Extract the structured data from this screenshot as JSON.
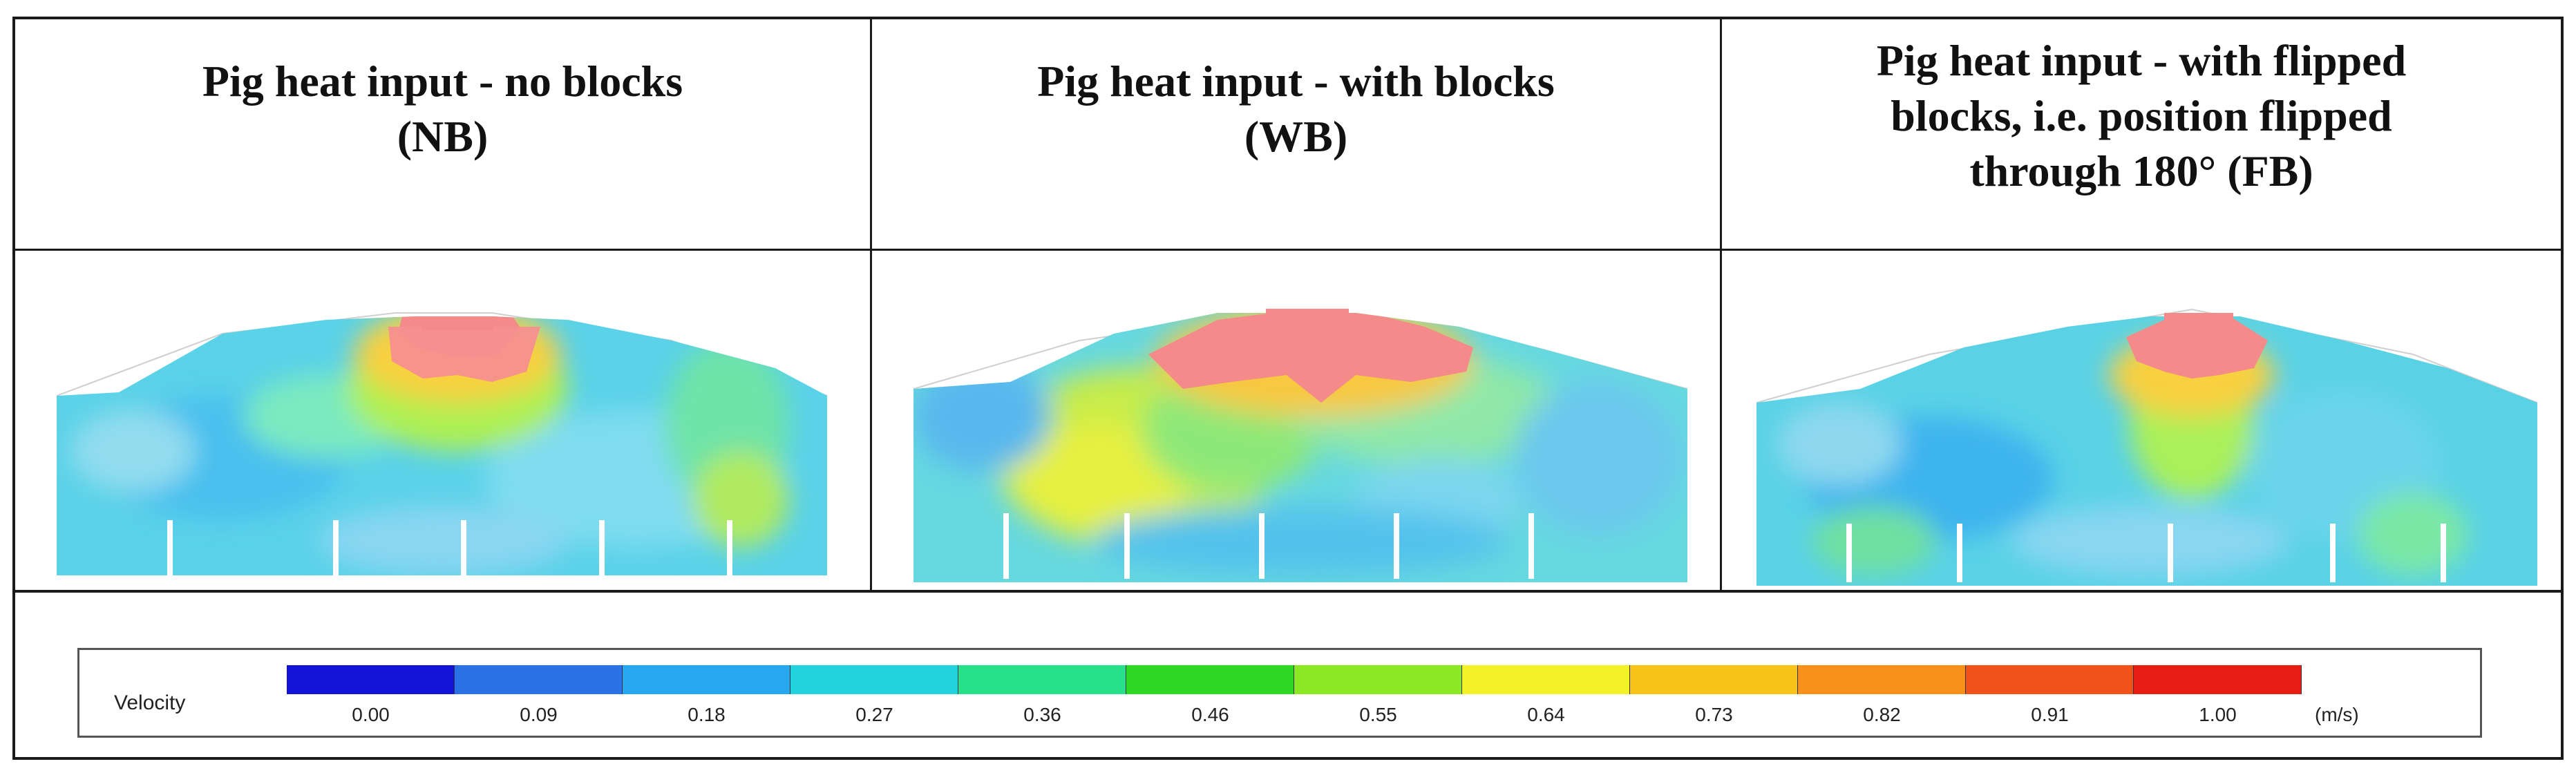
{
  "panels": [
    {
      "title": "Pig heat input - no blocks\n(NB)"
    },
    {
      "title": "Pig heat input - with blocks\n(WB)"
    },
    {
      "title": "Pig heat input - with flipped\nblocks, i.e. position flipped\nthrough 180° (FB)"
    }
  ],
  "legend": {
    "label": "Velocity",
    "unit": "(m/s)",
    "ticks": [
      "0.00",
      "0.09",
      "0.18",
      "0.27",
      "0.36",
      "0.46",
      "0.55",
      "0.64",
      "0.73",
      "0.82",
      "0.91",
      "1.00"
    ],
    "colors": [
      "#1414d8",
      "#2a72e6",
      "#27a7ee",
      "#22d2dc",
      "#27e08a",
      "#2ed824",
      "#8de824",
      "#f2f226",
      "#f8c41a",
      "#f8901a",
      "#f0521a",
      "#e81e14"
    ]
  }
}
